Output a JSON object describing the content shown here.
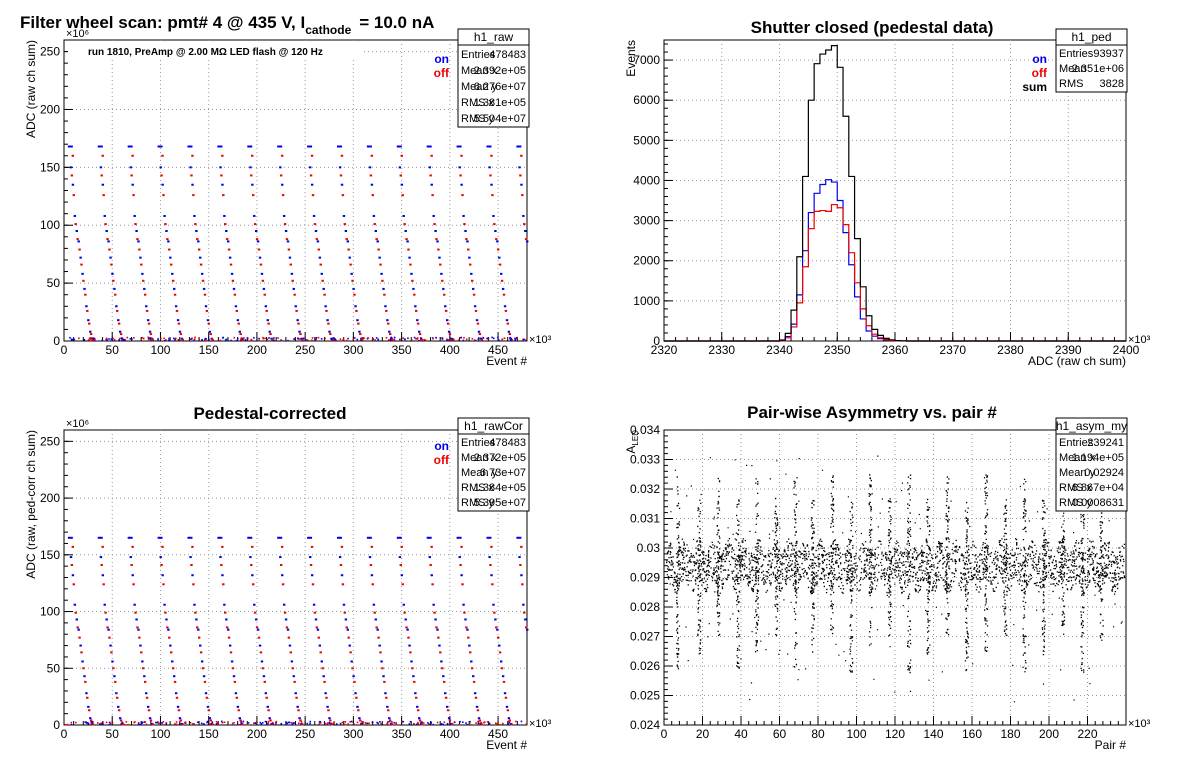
{
  "chart_data": [
    {
      "type": "scatter",
      "title": "Filter wheel scan: pmt#   4 @   435 V, I",
      "title_sub": "cathode",
      "title_tail": "= 10.0 nA",
      "xlabel": "Event #",
      "ylabel": "ADC (raw ch sum)",
      "x_exponent": "×10³",
      "y_exponent": "×10⁶",
      "xlim": [
        0,
        480
      ],
      "ylim": [
        0,
        260
      ],
      "xticks": [
        0,
        50,
        100,
        150,
        200,
        250,
        300,
        350,
        400,
        450
      ],
      "yticks": [
        0,
        50,
        100,
        150,
        200,
        250
      ],
      "annotation": "run 1810, PreAmp @ 2.00 MΩ  LED flash @  120 Hz",
      "legend": [
        {
          "name": "on",
          "color": "#0000ee"
        },
        {
          "name": "off",
          "color": "#ee0000"
        }
      ],
      "colors": {
        "on": "#0000ee",
        "off": "#ee0000"
      },
      "pattern": {
        "period": 31,
        "step_fraction": 0.1,
        "on_levels": [
          168,
          150,
          135,
          108,
          95,
          86,
          72,
          58,
          45,
          30,
          18,
          8,
          2
        ],
        "off_levels": [
          160,
          143,
          126,
          101,
          88,
          79,
          66,
          52,
          40,
          26,
          15,
          6,
          1
        ]
      },
      "stats": {
        "name": "h1_raw",
        "rows": [
          [
            "Entries",
            "478483"
          ],
          [
            "Mean x",
            "2.392e+05"
          ],
          [
            "Mean y",
            "6.276e+07"
          ],
          [
            "RMS x",
            "1.381e+05"
          ],
          [
            "RMS y",
            "5.504e+07"
          ]
        ]
      }
    },
    {
      "type": "histogram",
      "title": "Shutter closed (pedestal data)",
      "xlabel": "ADC (raw ch sum)",
      "ylabel": "Events",
      "x_exponent": "×10³",
      "xlim": [
        2320,
        2400
      ],
      "ylim": [
        0,
        7500
      ],
      "xticks": [
        2320,
        2330,
        2340,
        2350,
        2360,
        2370,
        2380,
        2390,
        2400
      ],
      "yticks": [
        0,
        1000,
        2000,
        3000,
        4000,
        5000,
        6000,
        7000
      ],
      "bin_width": 1,
      "bin_start": 2340,
      "legend": [
        {
          "name": "on",
          "color": "#0000ee"
        },
        {
          "name": "off",
          "color": "#ee0000"
        },
        {
          "name": "sum",
          "color": "#000000"
        }
      ],
      "series": [
        {
          "name": "on",
          "color": "#0000ee",
          "values": [
            15,
            110,
            420,
            1150,
            2250,
            3200,
            3680,
            3900,
            4020,
            3960,
            3500,
            2700,
            1900,
            1100,
            550,
            250,
            120,
            60,
            30,
            15,
            5,
            2
          ]
        },
        {
          "name": "off",
          "color": "#ee0000",
          "values": [
            10,
            80,
            350,
            950,
            1850,
            2800,
            3230,
            3250,
            3230,
            3400,
            3320,
            2900,
            2200,
            1450,
            800,
            380,
            170,
            80,
            35,
            15,
            6,
            2
          ]
        },
        {
          "name": "sum",
          "color": "#000000",
          "values": [
            25,
            190,
            770,
            2100,
            4100,
            6000,
            6910,
            7150,
            7250,
            7360,
            6820,
            5600,
            4100,
            2550,
            1350,
            630,
            290,
            140,
            65,
            30,
            11,
            4
          ]
        }
      ],
      "stats": {
        "name": "h1_ped",
        "rows": [
          [
            "Entries",
            "93937"
          ],
          [
            "Mean",
            "2.351e+06"
          ],
          [
            "RMS",
            "3828"
          ]
        ]
      }
    },
    {
      "type": "scatter",
      "title": "Pedestal-corrected",
      "xlabel": "Event #",
      "ylabel": "ADC (raw, ped-corr ch sum)",
      "x_exponent": "×10³",
      "y_exponent": "×10⁶",
      "xlim": [
        0,
        480
      ],
      "ylim": [
        0,
        260
      ],
      "xticks": [
        0,
        50,
        100,
        150,
        200,
        250,
        300,
        350,
        400,
        450
      ],
      "yticks": [
        0,
        50,
        100,
        150,
        200,
        250
      ],
      "legend": [
        {
          "name": "on",
          "color": "#0000ee"
        },
        {
          "name": "off",
          "color": "#ee0000"
        }
      ],
      "colors": {
        "on": "#0000ee",
        "off": "#ee0000"
      },
      "pattern": {
        "period": 31,
        "step_fraction": 0.1,
        "on_levels": [
          165,
          148,
          132,
          106,
          93,
          84,
          70,
          56,
          43,
          28,
          16,
          6,
          1
        ],
        "off_levels": [
          157,
          141,
          124,
          99,
          86,
          77,
          64,
          50,
          38,
          24,
          13,
          4,
          0.5
        ]
      },
      "stats": {
        "name": "h1_rawCor",
        "rows": [
          [
            "Entries",
            "478483"
          ],
          [
            "Mean x",
            "2.372e+05"
          ],
          [
            "Mean y",
            "6.73e+07"
          ],
          [
            "RMS x",
            "1.384e+05"
          ],
          [
            "RMS y",
            "5.395e+07"
          ]
        ]
      }
    },
    {
      "type": "scatter",
      "title": "Pair-wise Asymmetry vs. pair #",
      "xlabel": "Pair #",
      "ylabel": "A",
      "ylabel_sub": "LED",
      "x_exponent": "×10³",
      "xlim": [
        0,
        240
      ],
      "ylim": [
        0.024,
        0.034
      ],
      "xticks": [
        0,
        20,
        40,
        60,
        80,
        100,
        120,
        140,
        160,
        180,
        200,
        220
      ],
      "yticks": [
        0.024,
        0.025,
        0.026,
        0.027,
        0.028,
        0.029,
        0.03,
        0.031,
        0.032,
        0.033,
        0.034
      ],
      "color": "#000000",
      "band_center": 0.0294,
      "band_halfwidth": 0.0007,
      "spike_x": [
        7,
        18,
        28,
        38,
        48,
        58,
        68,
        77,
        87,
        97,
        107,
        117,
        127,
        137,
        147,
        157,
        167,
        177,
        187,
        197,
        207,
        217,
        227
      ],
      "spike_range": [
        0.0258,
        0.0325
      ],
      "stats": {
        "name": "h1_asym_my",
        "rows": [
          [
            "Entries",
            "239241"
          ],
          [
            "Mean x",
            "1.194e+05"
          ],
          [
            "Mean y",
            "0.02924"
          ],
          [
            "RMS x",
            "6.867e+04"
          ],
          [
            "RMS y",
            "0.0008631"
          ]
        ]
      }
    }
  ]
}
